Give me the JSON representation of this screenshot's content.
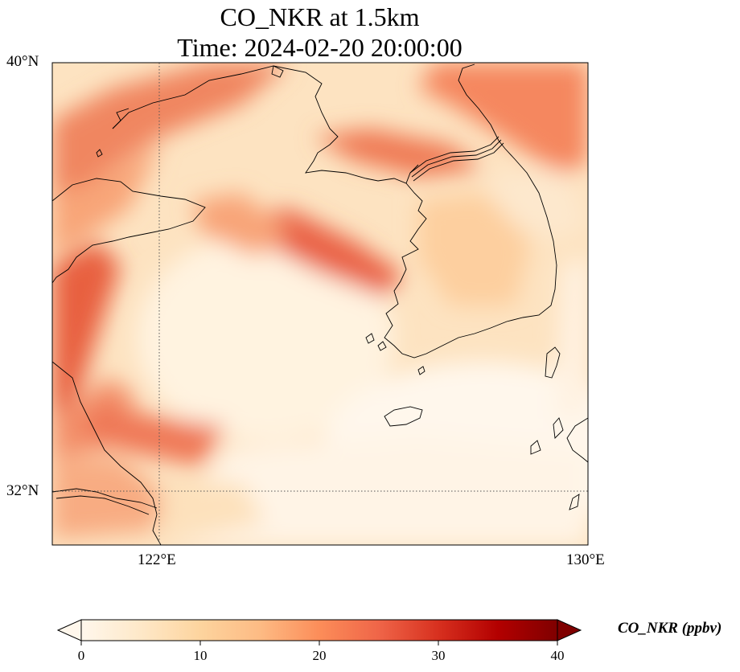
{
  "title": {
    "line1": "CO_NKR at 1.5km",
    "line2": "Time: 2024-02-20 20:00:00"
  },
  "map": {
    "lat_ticks": [
      "40°N",
      "32°N"
    ],
    "lon_ticks": [
      "122°E",
      "130°E"
    ],
    "lon_range": [
      120,
      130
    ],
    "lat_range": [
      31,
      40
    ],
    "gridlines": "dotted",
    "colormap": "OrRd",
    "colormap_colors": [
      "#fff7ec",
      "#fee8c8",
      "#fdd49e",
      "#fdbb84",
      "#fc8d59",
      "#ef6548",
      "#d7301f",
      "#b30000",
      "#7f0000"
    ],
    "coastline_color": "#000000"
  },
  "colorbar": {
    "label": "CO_NKR (ppbv)",
    "ticks": [
      "0",
      "10",
      "20",
      "30",
      "40"
    ],
    "range": [
      0,
      40
    ],
    "extend": "both"
  }
}
